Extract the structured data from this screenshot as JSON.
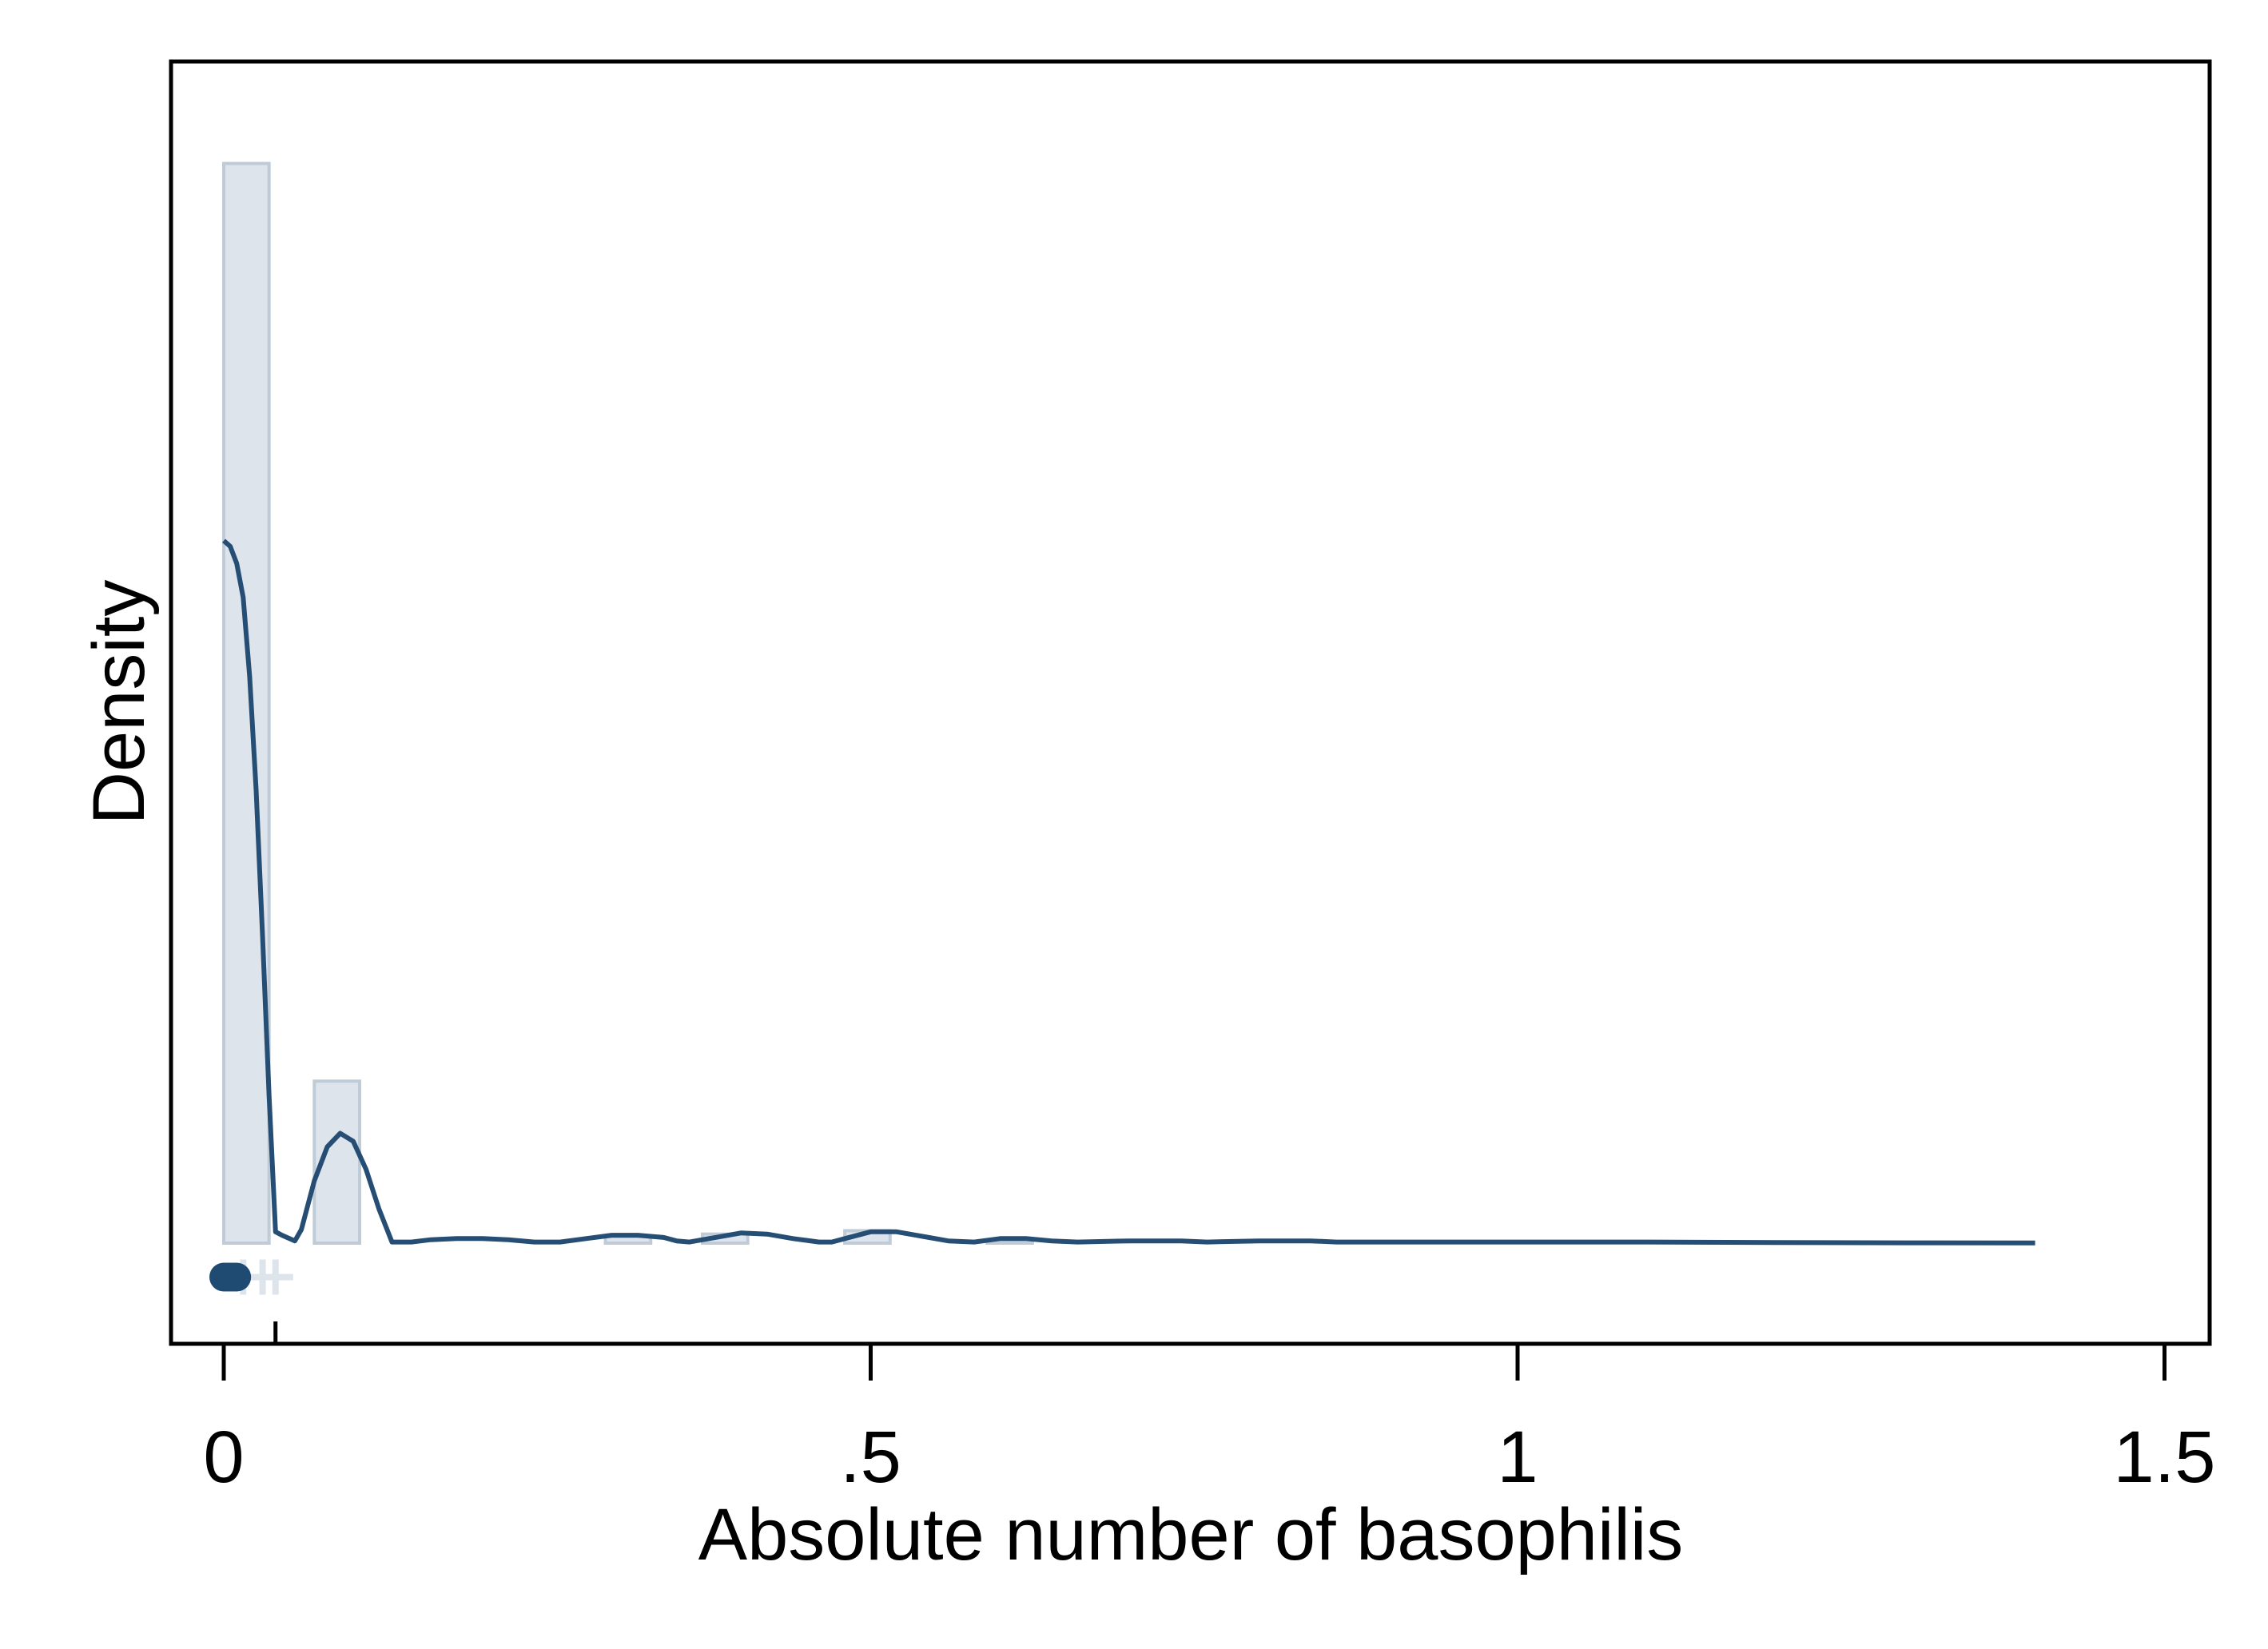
{
  "chart_data": {
    "type": "histogram",
    "title": "",
    "xlabel": "Absolute number of basophilis",
    "ylabel": "Density",
    "xlim": [
      -0.04,
      1.54
    ],
    "ylim": [
      -0.1,
      1.0
    ],
    "x_ticks": [
      {
        "value": 0,
        "label": "0"
      },
      {
        "value": 0.5,
        "label": ".5"
      },
      {
        "value": 1,
        "label": "1"
      },
      {
        "value": 1.5,
        "label": "1.5"
      }
    ],
    "y_ticks_labeled": false,
    "grid": false,
    "legend": "none",
    "colors": {
      "bar_fill": "#dde4ec",
      "bar_stroke": "#bfccd8",
      "density_line": "#264d73",
      "marker_dark": "#1f4a72",
      "marker_light": "#dde4ec",
      "axis": "#000000"
    },
    "histogram": {
      "bin_width": 0.035,
      "bins": [
        {
          "x0": 0.0,
          "x1": 0.035,
          "value": 0.953
        },
        {
          "x0": 0.035,
          "x1": 0.07,
          "value": 0.0
        },
        {
          "x0": 0.07,
          "x1": 0.105,
          "value": 0.143
        },
        {
          "x0": 0.295,
          "x1": 0.33,
          "value": 0.006
        },
        {
          "x0": 0.37,
          "x1": 0.405,
          "value": 0.008
        },
        {
          "x0": 0.48,
          "x1": 0.515,
          "value": 0.011
        },
        {
          "x0": 0.59,
          "x1": 0.625,
          "value": 0.003
        }
      ]
    },
    "density_curve": {
      "x": [
        0.0,
        0.005,
        0.01,
        0.015,
        0.02,
        0.025,
        0.03,
        0.035,
        0.04,
        0.045,
        0.055,
        0.06,
        0.07,
        0.08,
        0.09,
        0.1,
        0.11,
        0.12,
        0.13,
        0.145,
        0.16,
        0.18,
        0.2,
        0.22,
        0.24,
        0.26,
        0.28,
        0.3,
        0.32,
        0.34,
        0.35,
        0.36,
        0.38,
        0.4,
        0.42,
        0.44,
        0.46,
        0.47,
        0.48,
        0.5,
        0.52,
        0.54,
        0.56,
        0.58,
        0.6,
        0.62,
        0.64,
        0.66,
        0.7,
        0.74,
        0.76,
        0.8,
        0.84,
        0.86,
        0.9,
        0.94,
        0.96,
        1.0,
        1.04,
        1.06,
        1.1,
        1.2,
        1.3,
        1.4
      ],
      "y": [
        0.62,
        0.615,
        0.6,
        0.57,
        0.5,
        0.4,
        0.27,
        0.13,
        0.01,
        0.007,
        0.002,
        0.012,
        0.055,
        0.085,
        0.097,
        0.09,
        0.065,
        0.03,
        0.001,
        0.001,
        0.003,
        0.004,
        0.004,
        0.003,
        0.001,
        0.001,
        0.004,
        0.007,
        0.007,
        0.005,
        0.002,
        0.001,
        0.005,
        0.009,
        0.008,
        0.004,
        0.001,
        0.001,
        0.004,
        0.01,
        0.01,
        0.006,
        0.002,
        0.001,
        0.004,
        0.004,
        0.002,
        0.001,
        0.002,
        0.002,
        0.001,
        0.002,
        0.002,
        0.001,
        0.001,
        0.001,
        0.001,
        0.001,
        0.001,
        0.001,
        0.001,
        0.0005,
        0.0003,
        0.0002
      ]
    },
    "markers": {
      "y": -0.03,
      "dark_points": [
        0.0,
        0.002,
        0.004,
        0.006,
        0.008,
        0.01
      ],
      "light_crosses": [
        0.015,
        0.03,
        0.04
      ],
      "spike": 0.04
    }
  }
}
